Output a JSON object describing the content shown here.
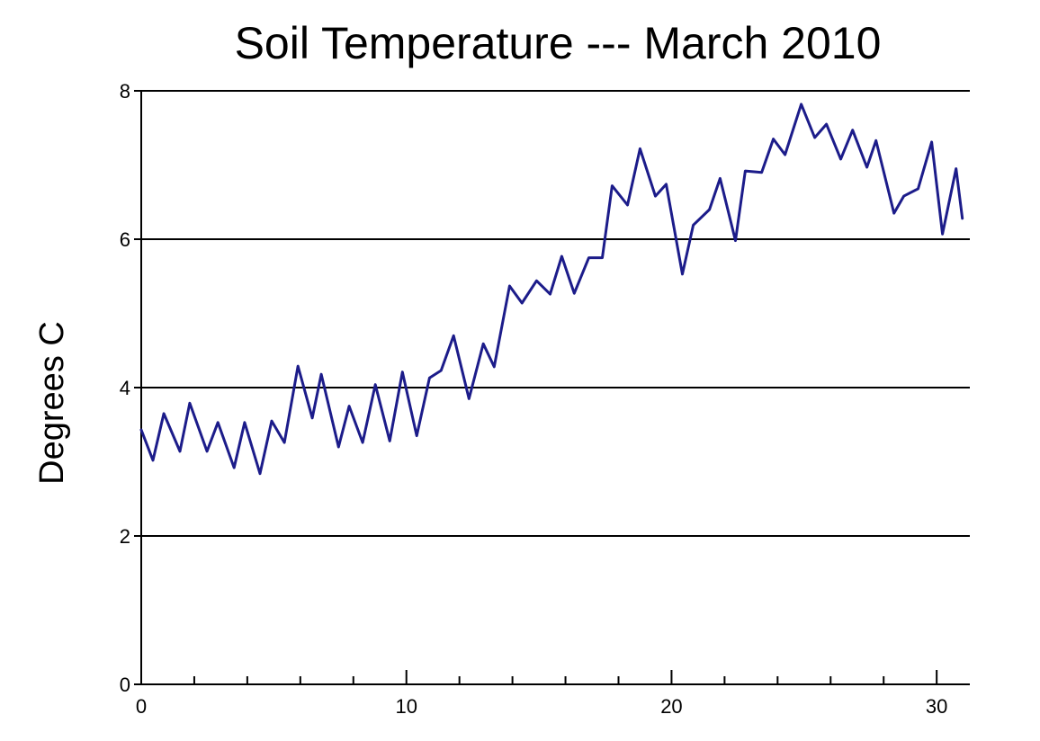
{
  "chart_data": {
    "type": "line",
    "title": "Soil Temperature --- March 2010",
    "ylabel": "Degrees C",
    "color": "#1c1c8a",
    "x": [
      0,
      0.44,
      0.85,
      1.46,
      1.83,
      2.48,
      2.89,
      3.5,
      3.9,
      4.48,
      4.92,
      5.4,
      5.91,
      6.45,
      6.79,
      7.44,
      7.84,
      8.35,
      8.83,
      9.37,
      9.85,
      10.39,
      10.87,
      11.31,
      11.78,
      12.36,
      12.9,
      13.31,
      13.89,
      14.36,
      14.91,
      15.42,
      15.86,
      16.33,
      16.88,
      17.39,
      17.76,
      18.34,
      18.81,
      19.39,
      19.8,
      20.41,
      20.82,
      21.43,
      21.83,
      22.41,
      22.78,
      23.4,
      23.84,
      24.28,
      24.89,
      25.4,
      25.84,
      26.38,
      26.83,
      27.37,
      27.71,
      28.39,
      28.76,
      29.3,
      29.81,
      30.22,
      30.73,
      30.97
    ],
    "values": [
      3.43,
      3.02,
      3.65,
      3.14,
      3.79,
      3.14,
      3.53,
      2.92,
      3.53,
      2.84,
      3.55,
      3.26,
      4.29,
      3.59,
      4.18,
      3.2,
      3.75,
      3.26,
      4.04,
      3.28,
      4.21,
      3.35,
      4.13,
      4.23,
      4.7,
      3.85,
      4.59,
      4.28,
      5.37,
      5.14,
      5.44,
      5.26,
      5.77,
      5.27,
      5.75,
      5.75,
      6.72,
      6.46,
      7.22,
      6.58,
      6.74,
      5.53,
      6.19,
      6.4,
      6.82,
      5.98,
      6.92,
      6.9,
      7.35,
      7.14,
      7.82,
      7.37,
      7.55,
      7.08,
      7.47,
      6.97,
      7.33,
      6.35,
      6.58,
      6.68,
      7.31,
      6.07,
      6.95,
      6.28
    ],
    "xlim": [
      0,
      31.25
    ],
    "xticks": [
      0,
      10,
      20,
      30
    ],
    "xminorticks": [
      2,
      4,
      6,
      8,
      12,
      14,
      16,
      18,
      22,
      24,
      26,
      28
    ],
    "ylim": [
      0,
      8
    ],
    "yticks": [
      0,
      2,
      4,
      6,
      8
    ],
    "grid": true
  }
}
